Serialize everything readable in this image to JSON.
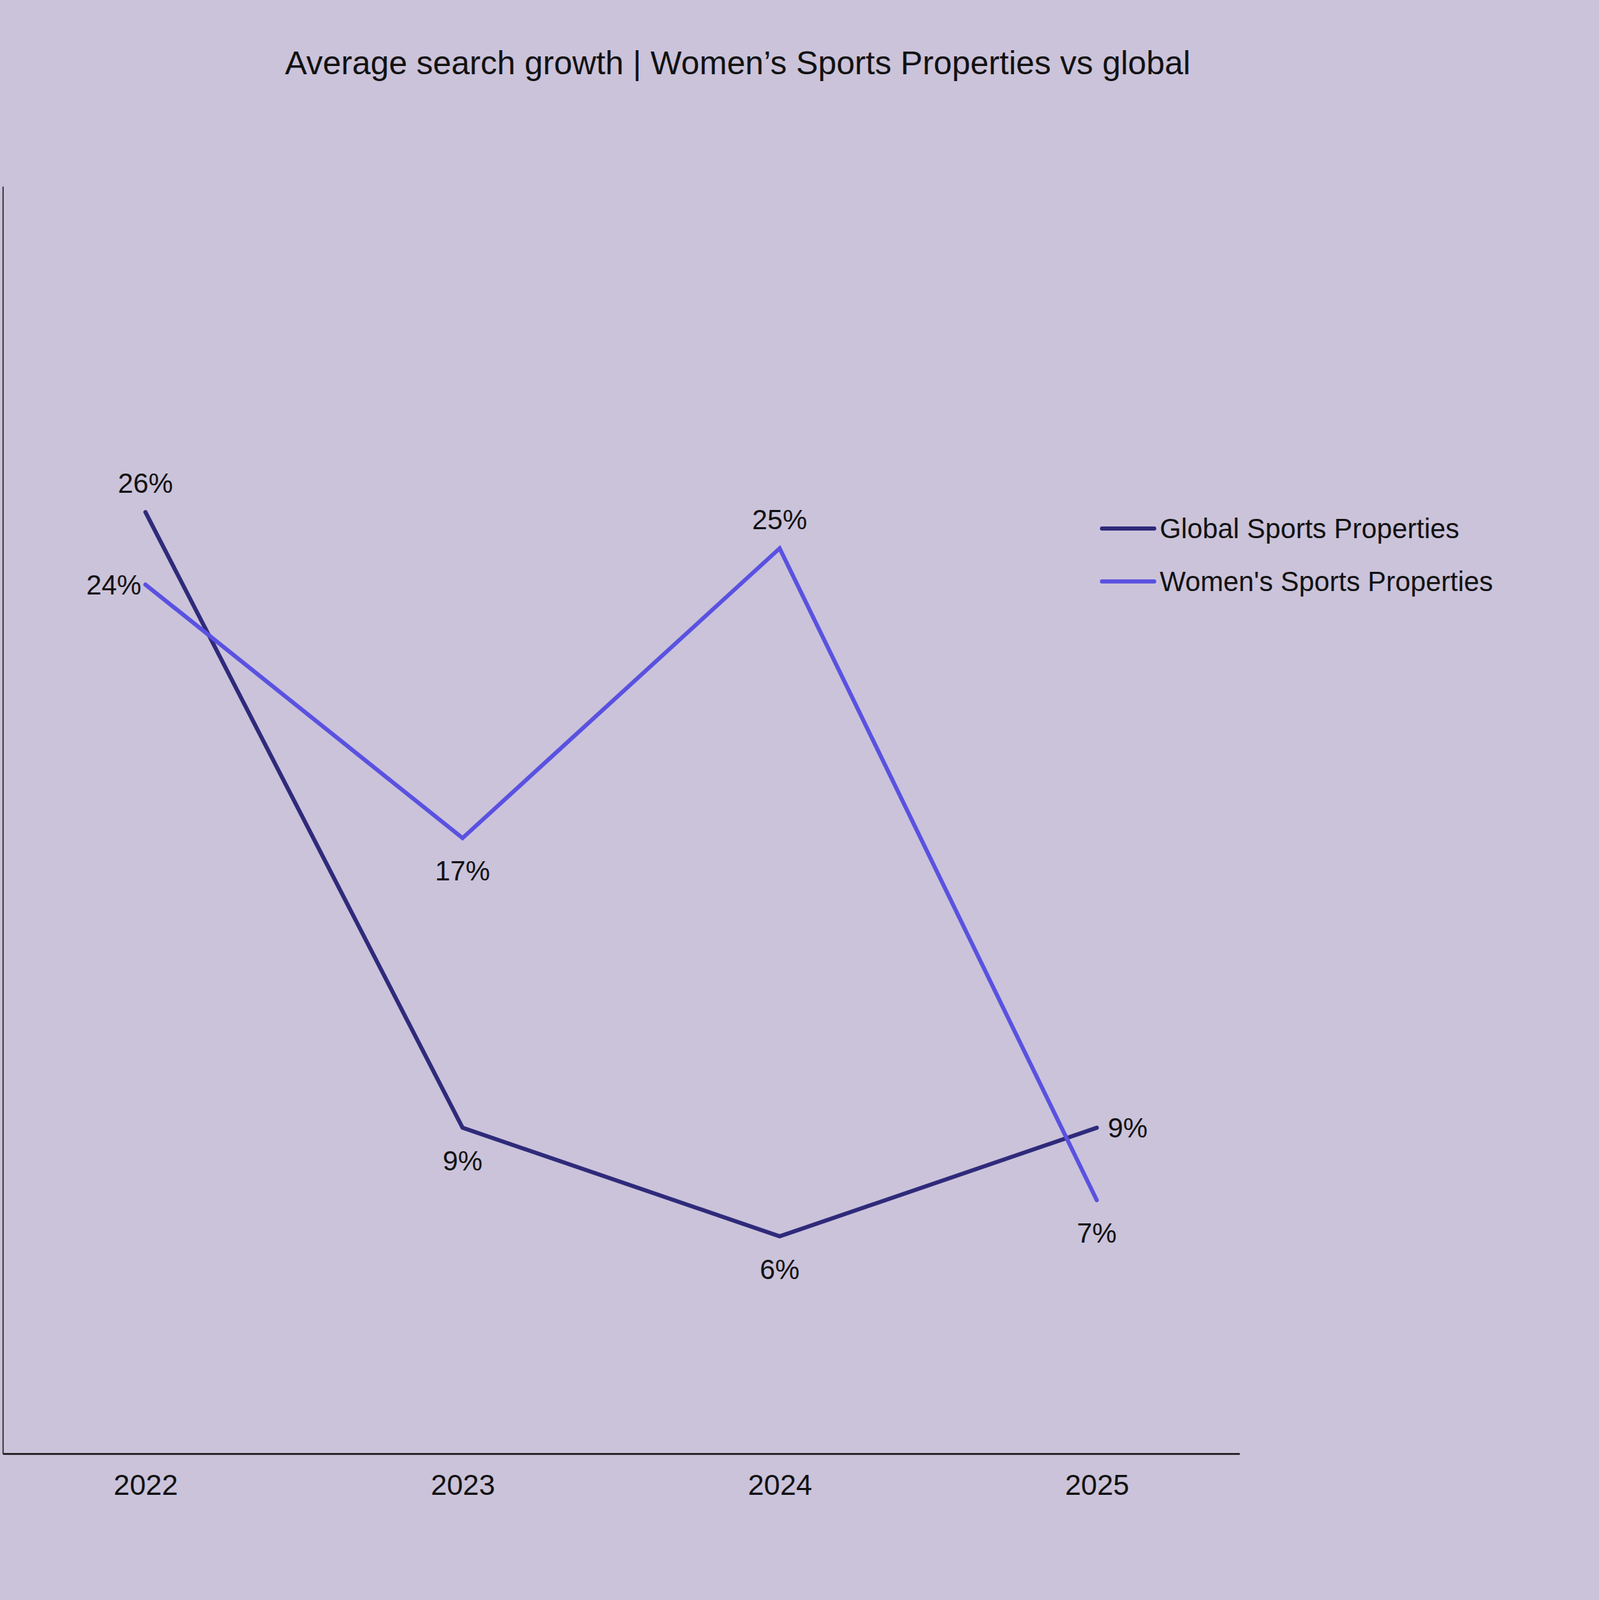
{
  "chart_data": {
    "type": "line",
    "title": "Average search growth | Women’s Sports Properties vs global",
    "categories": [
      "2022",
      "2023",
      "2024",
      "2025"
    ],
    "series": [
      {
        "name": "Global Sports Properties",
        "color": "#2f2a7a",
        "values": [
          26,
          9,
          6,
          9
        ],
        "value_labels": [
          "26%",
          "9%",
          "6%",
          "9%"
        ]
      },
      {
        "name": "Women's Sports Properties",
        "color": "#5a52e0",
        "values": [
          24,
          17,
          25,
          7
        ],
        "value_labels": [
          "24%",
          "17%",
          "25%",
          "7%"
        ]
      }
    ],
    "ylim": [
      0,
      35
    ],
    "data_labels": true,
    "tick_labels": "x",
    "legend": "upper right"
  }
}
